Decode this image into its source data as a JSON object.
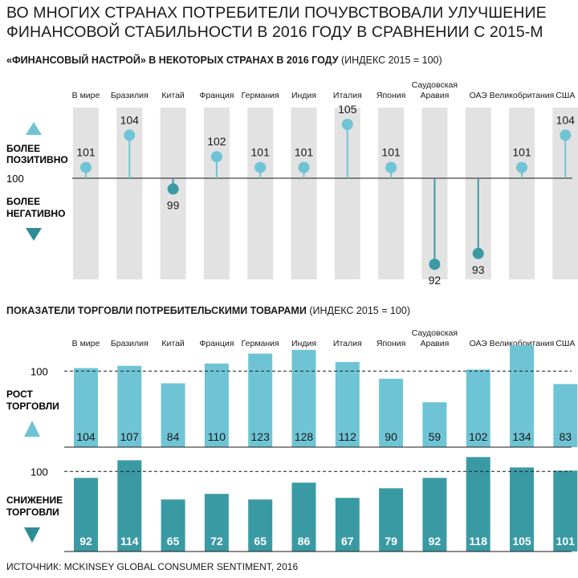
{
  "title": "Во многих странах потребители почувствовали улучшение финансовой стабильности в 2016 году в сравнении с 2015-м",
  "source": "Источник: McKinsey Global Consumer Sentiment, 2016",
  "colors": {
    "light": "#6ec4d4",
    "dark": "#3a9aa4",
    "band": "#e2e2e2",
    "arrow_light": "#6ec4d4",
    "arrow_dark": "#2e8c97"
  },
  "chart_data": [
    {
      "type": "lollipop",
      "title_bold": "«Финансовый настрой» в некоторых странах в 2016 году",
      "title_note": "(индекс 2015 = 100)",
      "baseline": 100,
      "baseline_label": "100",
      "ylabel_up": [
        "Более",
        "позитивно"
      ],
      "ylabel_down": [
        "Более",
        "негативно"
      ],
      "categories": [
        [
          "В мире"
        ],
        [
          "Бразилия"
        ],
        [
          "Китай"
        ],
        [
          "Франция"
        ],
        [
          "Германия"
        ],
        [
          "Индия"
        ],
        [
          "Италия"
        ],
        [
          "Япония"
        ],
        [
          "Саудовская",
          "Аравия"
        ],
        [
          "ОАЭ"
        ],
        [
          "Великобритания"
        ],
        [
          "США"
        ]
      ],
      "values": [
        101,
        104,
        99,
        102,
        101,
        101,
        105,
        101,
        92,
        93,
        101,
        104
      ]
    },
    {
      "type": "bar",
      "title_bold": "Показатели торговли потребительскими товарами",
      "title_note": "(индекс 2015 = 100)",
      "baseline": 100,
      "baseline_label": "100",
      "categories": [
        [
          "В мире"
        ],
        [
          "Бразилия"
        ],
        [
          "Китай"
        ],
        [
          "Франция"
        ],
        [
          "Германия"
        ],
        [
          "Индия"
        ],
        [
          "Италия"
        ],
        [
          "Япония"
        ],
        [
          "Саудовская",
          "Аравия"
        ],
        [
          "ОАЭ"
        ],
        [
          "Великобритания"
        ],
        [
          "США"
        ]
      ],
      "series": [
        {
          "name": "Рост торговли",
          "label_lines": [
            "Рост",
            "торговли"
          ],
          "values": [
            104,
            107,
            84,
            110,
            123,
            128,
            112,
            90,
            59,
            102,
            134,
            83
          ]
        },
        {
          "name": "Снижение торговли",
          "label_lines": [
            "Снижение",
            "торговли"
          ],
          "values": [
            92,
            114,
            65,
            72,
            65,
            86,
            67,
            79,
            92,
            118,
            105,
            101
          ]
        }
      ]
    }
  ]
}
